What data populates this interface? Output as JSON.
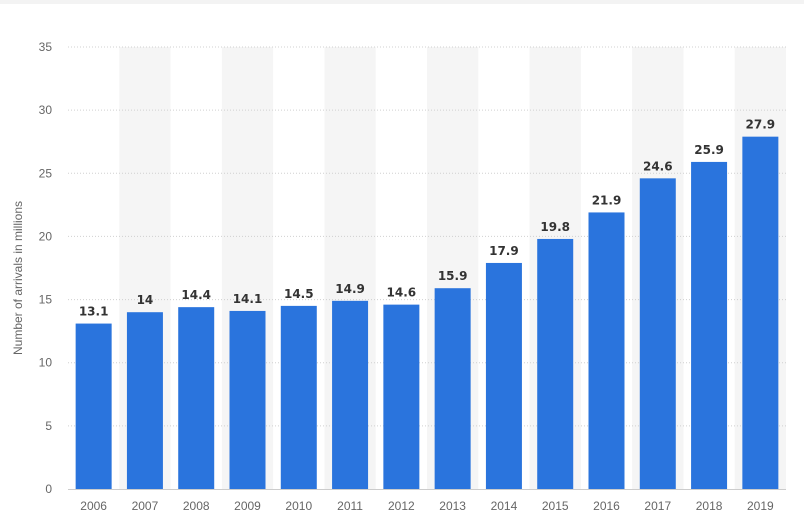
{
  "chart_data": {
    "type": "bar",
    "categories": [
      "2006",
      "2007",
      "2008",
      "2009",
      "2010",
      "2011",
      "2012",
      "2013",
      "2014",
      "2015",
      "2016",
      "2017",
      "2018",
      "2019"
    ],
    "values": [
      13.1,
      14,
      14.4,
      14.1,
      14.5,
      14.9,
      14.6,
      15.9,
      17.9,
      19.8,
      21.9,
      24.6,
      25.9,
      27.9
    ],
    "value_labels": [
      "13.1",
      "14",
      "14.4",
      "14.1",
      "14.5",
      "14.9",
      "14.6",
      "15.9",
      "17.9",
      "19.8",
      "21.9",
      "24.6",
      "25.9",
      "27.9"
    ],
    "title": "",
    "xlabel": "",
    "ylabel": "Number of arrivals in millions",
    "ylim": [
      0,
      35
    ],
    "yticks": [
      "0",
      "5",
      "10",
      "15",
      "20",
      "25",
      "30",
      "35"
    ],
    "grid": true,
    "alternating_column_bands": true,
    "colors": {
      "bar": "#2a74dd",
      "band": "#f5f5f5",
      "grid": "#d0d0d0"
    }
  }
}
